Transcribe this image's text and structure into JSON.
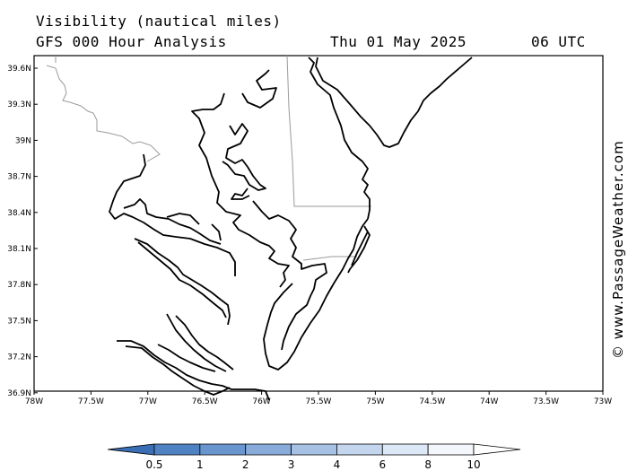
{
  "header": {
    "line1": "Visibility (nautical miles)",
    "model": "GFS 000 Hour Analysis",
    "date": "Thu 01 May 2025",
    "time": "06 UTC"
  },
  "credit": "© www.PassageWeather.com",
  "map": {
    "lat_labels": [
      "39.6N",
      "39.3N",
      "39N",
      "38.7N",
      "38.4N",
      "38.1N",
      "37.8N",
      "37.5N",
      "37.2N",
      "36.9N"
    ],
    "lon_labels": [
      "78W",
      "77.5W",
      "77W",
      "76.5W",
      "76W",
      "75.5W",
      "75W",
      "74.5W",
      "74W",
      "73.5W",
      "73W"
    ]
  },
  "colorbar": {
    "labels": [
      "0.5",
      "1",
      "2",
      "3",
      "4",
      "6",
      "8",
      "10"
    ],
    "colors": [
      "#3a6fb5",
      "#4f82c2",
      "#6a96cf",
      "#88abda",
      "#a6c1e4",
      "#c3d6ee",
      "#dde8f6",
      "#f3f7fc",
      "#ffffff"
    ]
  }
}
